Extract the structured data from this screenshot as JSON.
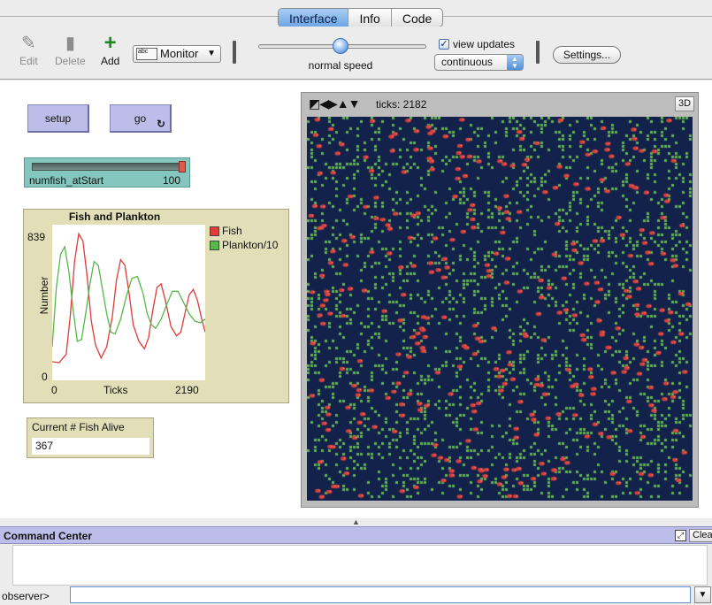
{
  "tabs": [
    {
      "label": "Interface",
      "active": true
    },
    {
      "label": "Info",
      "active": false
    },
    {
      "label": "Code",
      "active": false
    }
  ],
  "toolbar": {
    "edit_label": "Edit",
    "delete_label": "Delete",
    "add_label": "Add",
    "widget_type": "Monitor",
    "widget_icon_text": "abc",
    "speed_label": "normal speed",
    "speed_fraction": 0.5,
    "view_updates_label": "view updates",
    "view_updates_checked": true,
    "update_mode": "continuous",
    "settings_label": "Settings..."
  },
  "interface": {
    "setup_label": "setup",
    "go_label": "go",
    "slider": {
      "name": "numfish_atStart",
      "value": "100",
      "fraction": 1.0
    },
    "plot": {
      "title": "Fish and Plankton",
      "ylabel": "Number",
      "xlabel": "Ticks",
      "ymax": "839",
      "ymin": "0",
      "xmin": "0",
      "xmax": "2190",
      "legend": [
        {
          "name": "Fish",
          "color": "#e03a3a"
        },
        {
          "name": "Plankton/10",
          "color": "#56b84a"
        }
      ]
    },
    "monitor": {
      "name": "Current # Fish Alive",
      "value": "367"
    },
    "view": {
      "ticks_text": "ticks: 2182",
      "btn_3d": "3D",
      "patch_color": "#13224a",
      "plankton_color": "#5bbb3c",
      "fish_color": "#d8403a"
    }
  },
  "chart_data": {
    "type": "line",
    "title": "Fish and Plankton",
    "xlabel": "Ticks",
    "ylabel": "Number",
    "xlim": [
      0,
      2190
    ],
    "ylim": [
      0,
      839
    ],
    "series": [
      {
        "name": "Fish",
        "color": "#e03a3a",
        "x": [
          0,
          100,
          200,
          260,
          320,
          380,
          440,
          500,
          560,
          620,
          700,
          780,
          860,
          920,
          980,
          1040,
          1100,
          1160,
          1240,
          1320,
          1380,
          1440,
          1500,
          1560,
          1620,
          1700,
          1780,
          1840,
          1900,
          1960,
          2020,
          2080,
          2140,
          2190
        ],
        "y": [
          100,
          95,
          140,
          350,
          640,
          790,
          750,
          560,
          320,
          190,
          120,
          180,
          340,
          540,
          650,
          620,
          470,
          300,
          210,
          170,
          230,
          380,
          500,
          520,
          430,
          290,
          240,
          260,
          360,
          460,
          490,
          430,
          330,
          260
        ]
      },
      {
        "name": "Plankton/10",
        "color": "#56b84a",
        "x": [
          0,
          60,
          120,
          180,
          240,
          300,
          360,
          420,
          480,
          540,
          600,
          660,
          720,
          780,
          840,
          900,
          980,
          1060,
          1140,
          1220,
          1300,
          1360,
          1420,
          1480,
          1560,
          1640,
          1720,
          1800,
          1880,
          1960,
          2040,
          2120,
          2190
        ],
        "y": [
          180,
          500,
          680,
          720,
          580,
          380,
          210,
          220,
          360,
          520,
          640,
          620,
          490,
          360,
          260,
          250,
          330,
          450,
          550,
          560,
          470,
          360,
          300,
          280,
          330,
          410,
          480,
          480,
          420,
          360,
          320,
          310,
          330
        ]
      }
    ]
  },
  "command_center": {
    "title": "Command Center",
    "clear_label": "Clear",
    "prompt": "observer>"
  }
}
